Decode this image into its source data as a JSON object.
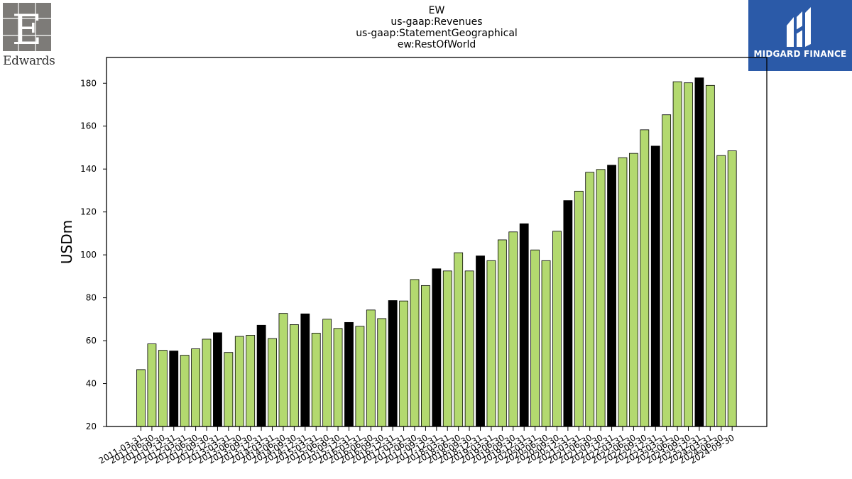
{
  "header": {
    "title_lines": [
      "EW",
      "us-gaap:Revenues",
      "us-gaap:StatementGeographical",
      "ew:RestOfWorld"
    ]
  },
  "logos": {
    "left_wordmark": "Edwards",
    "left_icon": "edwards-e-logo-icon",
    "right_wordmark": "MIDGARD FINANCE",
    "right_icon": "midgard-finance-logo-icon",
    "right_background": "#2b5aa8"
  },
  "chart_data": {
    "type": "bar",
    "ylabel": "USDm",
    "xlabel": "",
    "ylim": [
      20,
      192
    ],
    "yticks": [
      20,
      40,
      60,
      80,
      100,
      120,
      140,
      160,
      180
    ],
    "colors": {
      "quarter": "#b3d96f",
      "fiscal_year_end": "#000000",
      "edge": "#000000"
    },
    "categories": [
      "2011-03-31",
      "2011-06-30",
      "2011-09-30",
      "2011-12-31",
      "2012-03-31",
      "2012-06-30",
      "2012-09-30",
      "2012-12-31",
      "2013-03-31",
      "2013-06-30",
      "2013-09-30",
      "2013-12-31",
      "2014-03-31",
      "2014-06-30",
      "2014-09-30",
      "2014-12-31",
      "2015-03-31",
      "2015-06-30",
      "2015-09-30",
      "2015-12-31",
      "2016-03-31",
      "2016-06-30",
      "2016-09-30",
      "2016-12-31",
      "2017-03-31",
      "2017-06-30",
      "2017-09-30",
      "2017-12-31",
      "2018-03-31",
      "2018-06-30",
      "2018-09-30",
      "2018-12-31",
      "2019-03-31",
      "2019-06-30",
      "2019-09-30",
      "2019-12-31",
      "2020-03-31",
      "2020-06-30",
      "2020-09-30",
      "2020-12-31",
      "2021-03-31",
      "2021-06-30",
      "2021-09-30",
      "2021-12-31",
      "2022-03-31",
      "2022-06-30",
      "2022-09-30",
      "2022-12-31",
      "2023-03-31",
      "2023-06-30",
      "2023-09-30",
      "2023-12-31",
      "2024-03-31",
      "2024-06-30",
      "2024-09-30"
    ],
    "values": [
      46.5,
      58.5,
      55.5,
      55.2,
      53.2,
      56.2,
      60.7,
      63.7,
      54.5,
      62.0,
      62.5,
      67.2,
      61.0,
      72.7,
      67.5,
      72.5,
      63.5,
      70.0,
      65.7,
      68.5,
      66.7,
      74.3,
      70.3,
      78.7,
      78.5,
      88.5,
      85.7,
      93.5,
      92.5,
      101.0,
      92.5,
      99.5,
      97.3,
      107.0,
      110.7,
      114.5,
      102.3,
      97.3,
      111.0,
      125.3,
      129.7,
      138.5,
      139.8,
      141.8,
      145.3,
      147.3,
      158.3,
      150.7,
      165.3,
      180.7,
      180.2,
      182.5,
      179.0,
      146.3,
      148.5
    ],
    "highlighted_categories": [
      "2011-12-31",
      "2012-12-31",
      "2013-12-31",
      "2014-12-31",
      "2015-12-31",
      "2016-12-31",
      "2017-12-31",
      "2018-12-31",
      "2019-12-31",
      "2020-12-31",
      "2021-12-31",
      "2022-12-31",
      "2023-12-31"
    ]
  }
}
